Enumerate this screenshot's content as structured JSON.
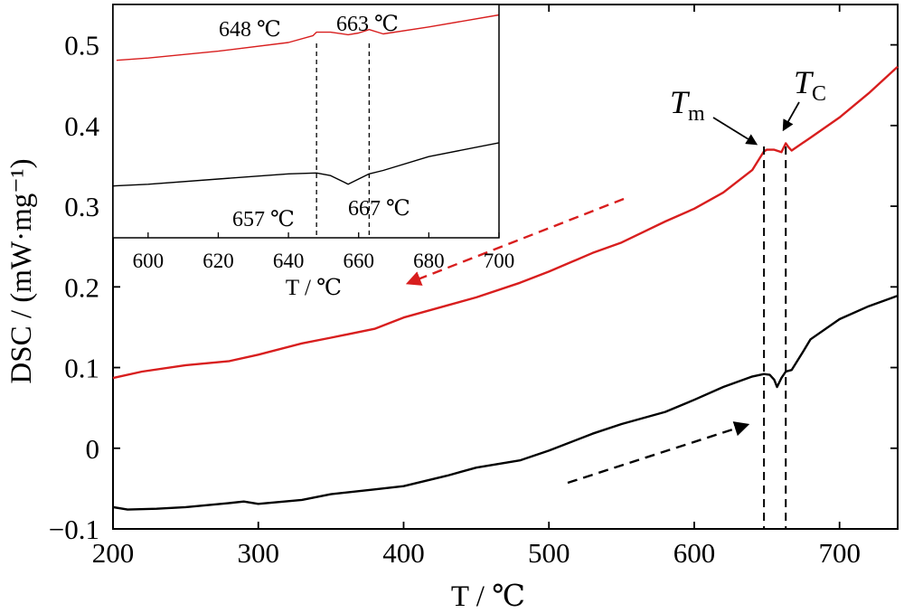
{
  "chart_data": [
    {
      "type": "line",
      "xlabel": "T / ℃",
      "ylabel": "DSC / (mW·mg⁻¹)",
      "xlim": [
        200,
        740
      ],
      "ylim": [
        -0.1,
        0.55
      ],
      "x_ticks": [
        "200",
        "300",
        "400",
        "500",
        "600",
        "700"
      ],
      "y_ticks": [
        "−0.1",
        "0",
        "0.1",
        "0.2",
        "0.3",
        "0.4",
        "0.5"
      ],
      "grid": false,
      "legend": "none",
      "series": [
        {
          "color": "#d81e1e",
          "direction": "cooling",
          "x": [
            200,
            220,
            250,
            280,
            300,
            330,
            350,
            380,
            400,
            430,
            450,
            480,
            500,
            530,
            550,
            580,
            600,
            620,
            640,
            648,
            650,
            655,
            660,
            663,
            665,
            667,
            680,
            700,
            720,
            740
          ],
          "y": [
            0.087,
            0.095,
            0.103,
            0.108,
            0.116,
            0.13,
            0.137,
            0.148,
            0.162,
            0.177,
            0.187,
            0.205,
            0.219,
            0.242,
            0.255,
            0.281,
            0.297,
            0.317,
            0.345,
            0.368,
            0.37,
            0.37,
            0.367,
            0.378,
            0.373,
            0.369,
            0.385,
            0.41,
            0.44,
            0.473
          ]
        },
        {
          "color": "#000000",
          "direction": "heating",
          "x": [
            200,
            210,
            230,
            250,
            280,
            290,
            300,
            330,
            350,
            380,
            400,
            430,
            450,
            480,
            500,
            530,
            550,
            580,
            600,
            620,
            640,
            648,
            652,
            655,
            657,
            660,
            663,
            667,
            675,
            680,
            700,
            720,
            740
          ],
          "y": [
            -0.073,
            -0.076,
            -0.075,
            -0.073,
            -0.068,
            -0.066,
            -0.069,
            -0.064,
            -0.057,
            -0.051,
            -0.047,
            -0.034,
            -0.024,
            -0.015,
            -0.003,
            0.018,
            0.03,
            0.045,
            0.06,
            0.076,
            0.089,
            0.092,
            0.091,
            0.085,
            0.076,
            0.087,
            0.095,
            0.097,
            0.12,
            0.135,
            0.16,
            0.176,
            0.189
          ]
        }
      ],
      "annotations": {
        "tm": "T",
        "tm_sub": "m",
        "tc": "T",
        "tc_sub": "C",
        "tm_x": 648,
        "tc_x": 663
      }
    },
    {
      "type": "line",
      "panel": "inset",
      "xlabel": "T / ℃",
      "xlim": [
        590,
        700
      ],
      "ylim": [
        -0.25,
        1.1
      ],
      "x_ticks": [
        "600",
        "620",
        "640",
        "660",
        "680",
        "700"
      ],
      "y_ticks": [],
      "series": [
        {
          "color": "#d81e1e",
          "x": [
            591,
            600,
            620,
            640,
            647,
            648,
            652,
            657,
            660,
            663,
            667,
            680,
            700
          ],
          "y": [
            0.777,
            0.79,
            0.83,
            0.88,
            0.92,
            0.94,
            0.94,
            0.925,
            0.935,
            0.955,
            0.93,
            0.97,
            1.04
          ]
        },
        {
          "color": "#000000",
          "x": [
            590,
            600,
            620,
            640,
            648,
            652,
            656,
            657,
            660,
            663,
            667,
            680,
            700
          ],
          "y": [
            0.05,
            0.06,
            0.09,
            0.12,
            0.125,
            0.11,
            0.07,
            0.06,
            0.09,
            0.12,
            0.14,
            0.22,
            0.3
          ]
        }
      ],
      "markers": [
        648,
        663
      ],
      "annotations": [
        "648 ℃",
        "663 ℃",
        "657 ℃",
        "667 ℃"
      ]
    }
  ]
}
